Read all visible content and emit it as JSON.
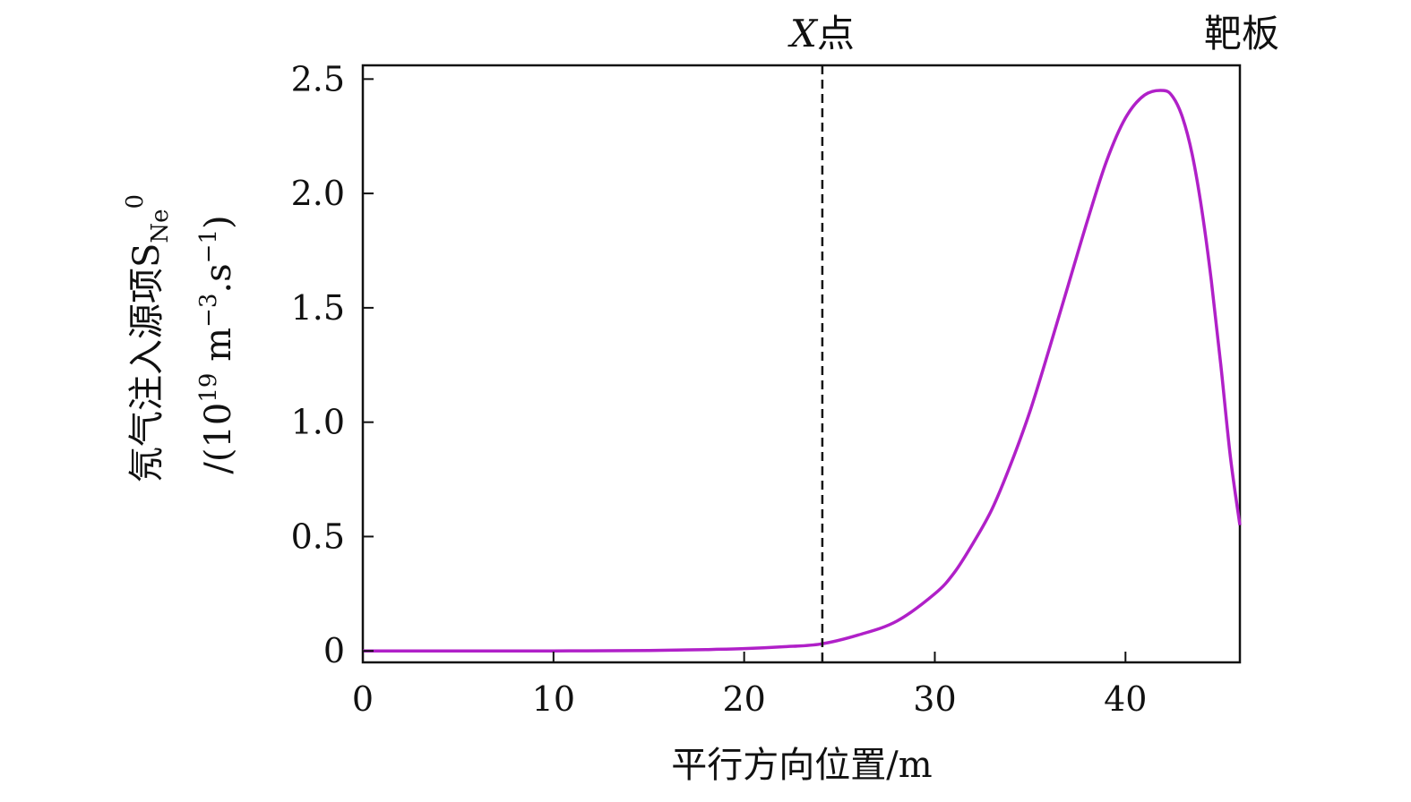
{
  "chart_data": {
    "type": "line",
    "xlabel": "平行方向位置/m",
    "ylabel": {
      "main": "氖气注入源项S",
      "sub": "Ne",
      "sup": "0",
      "unit_prefix": "/(10",
      "unit_exp": "19",
      "unit_mid": " m",
      "unit_exp2": "−3",
      "unit_mid2": ".s",
      "unit_exp3": "−1",
      "unit_suffix": ")"
    },
    "xlim": [
      0,
      46
    ],
    "ylim": [
      -0.05,
      2.56
    ],
    "xticks": [
      0,
      10,
      20,
      30,
      40
    ],
    "yticks": [
      0,
      0.5,
      1.0,
      1.5,
      2.0,
      2.5
    ],
    "xtick_labels": [
      "0",
      "10",
      "20",
      "30",
      "40"
    ],
    "ytick_labels": [
      "0",
      "0.5",
      "1.0",
      "1.5",
      "2.0",
      "2.5"
    ],
    "grid": false,
    "series": [
      {
        "color": "#b020c8",
        "x": [
          0,
          5,
          10,
          15,
          18,
          20,
          22,
          24,
          26,
          28,
          30,
          31,
          32,
          33,
          34,
          35,
          36,
          37,
          38,
          39,
          40,
          41,
          42,
          42.5,
          43,
          43.5,
          44,
          44.5,
          45,
          45.5,
          46
        ],
        "y": [
          0,
          0,
          0,
          0.002,
          0.006,
          0.01,
          0.018,
          0.03,
          0.07,
          0.13,
          0.25,
          0.34,
          0.47,
          0.62,
          0.82,
          1.05,
          1.32,
          1.6,
          1.88,
          2.14,
          2.33,
          2.43,
          2.45,
          2.42,
          2.33,
          2.17,
          1.93,
          1.62,
          1.25,
          0.85,
          0.55
        ]
      }
    ],
    "annotations": [
      {
        "x": 24.1,
        "label_italic": "X",
        "label": "点",
        "style": "dashed-vertical"
      },
      {
        "x": 46,
        "label": "靶板",
        "style": "edge-label"
      }
    ]
  }
}
